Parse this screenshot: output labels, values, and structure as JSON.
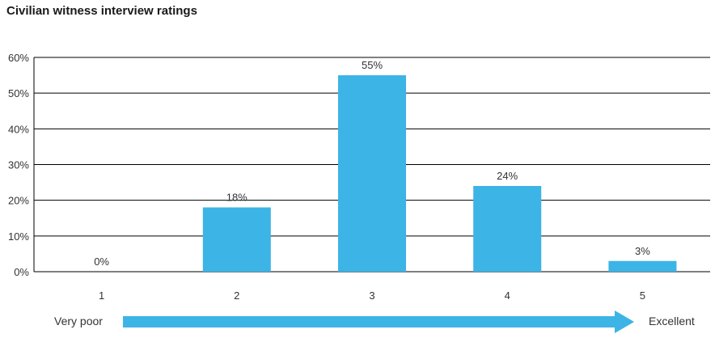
{
  "chart_data": {
    "type": "bar",
    "title": "Civilian witness interview ratings",
    "categories": [
      "1",
      "2",
      "3",
      "4",
      "5"
    ],
    "values": [
      0,
      18,
      55,
      24,
      3
    ],
    "value_labels": [
      "0%",
      "18%",
      "55%",
      "24%",
      "3%"
    ],
    "yticks": [
      "0%",
      "10%",
      "20%",
      "30%",
      "40%",
      "50%",
      "60%"
    ],
    "ylim": [
      0,
      60
    ],
    "grid": true,
    "bar_color": "#3cb4e5",
    "scale_arrow": {
      "start_label": "Very poor",
      "end_label": "Excellent",
      "color": "#3cb4e5"
    }
  }
}
